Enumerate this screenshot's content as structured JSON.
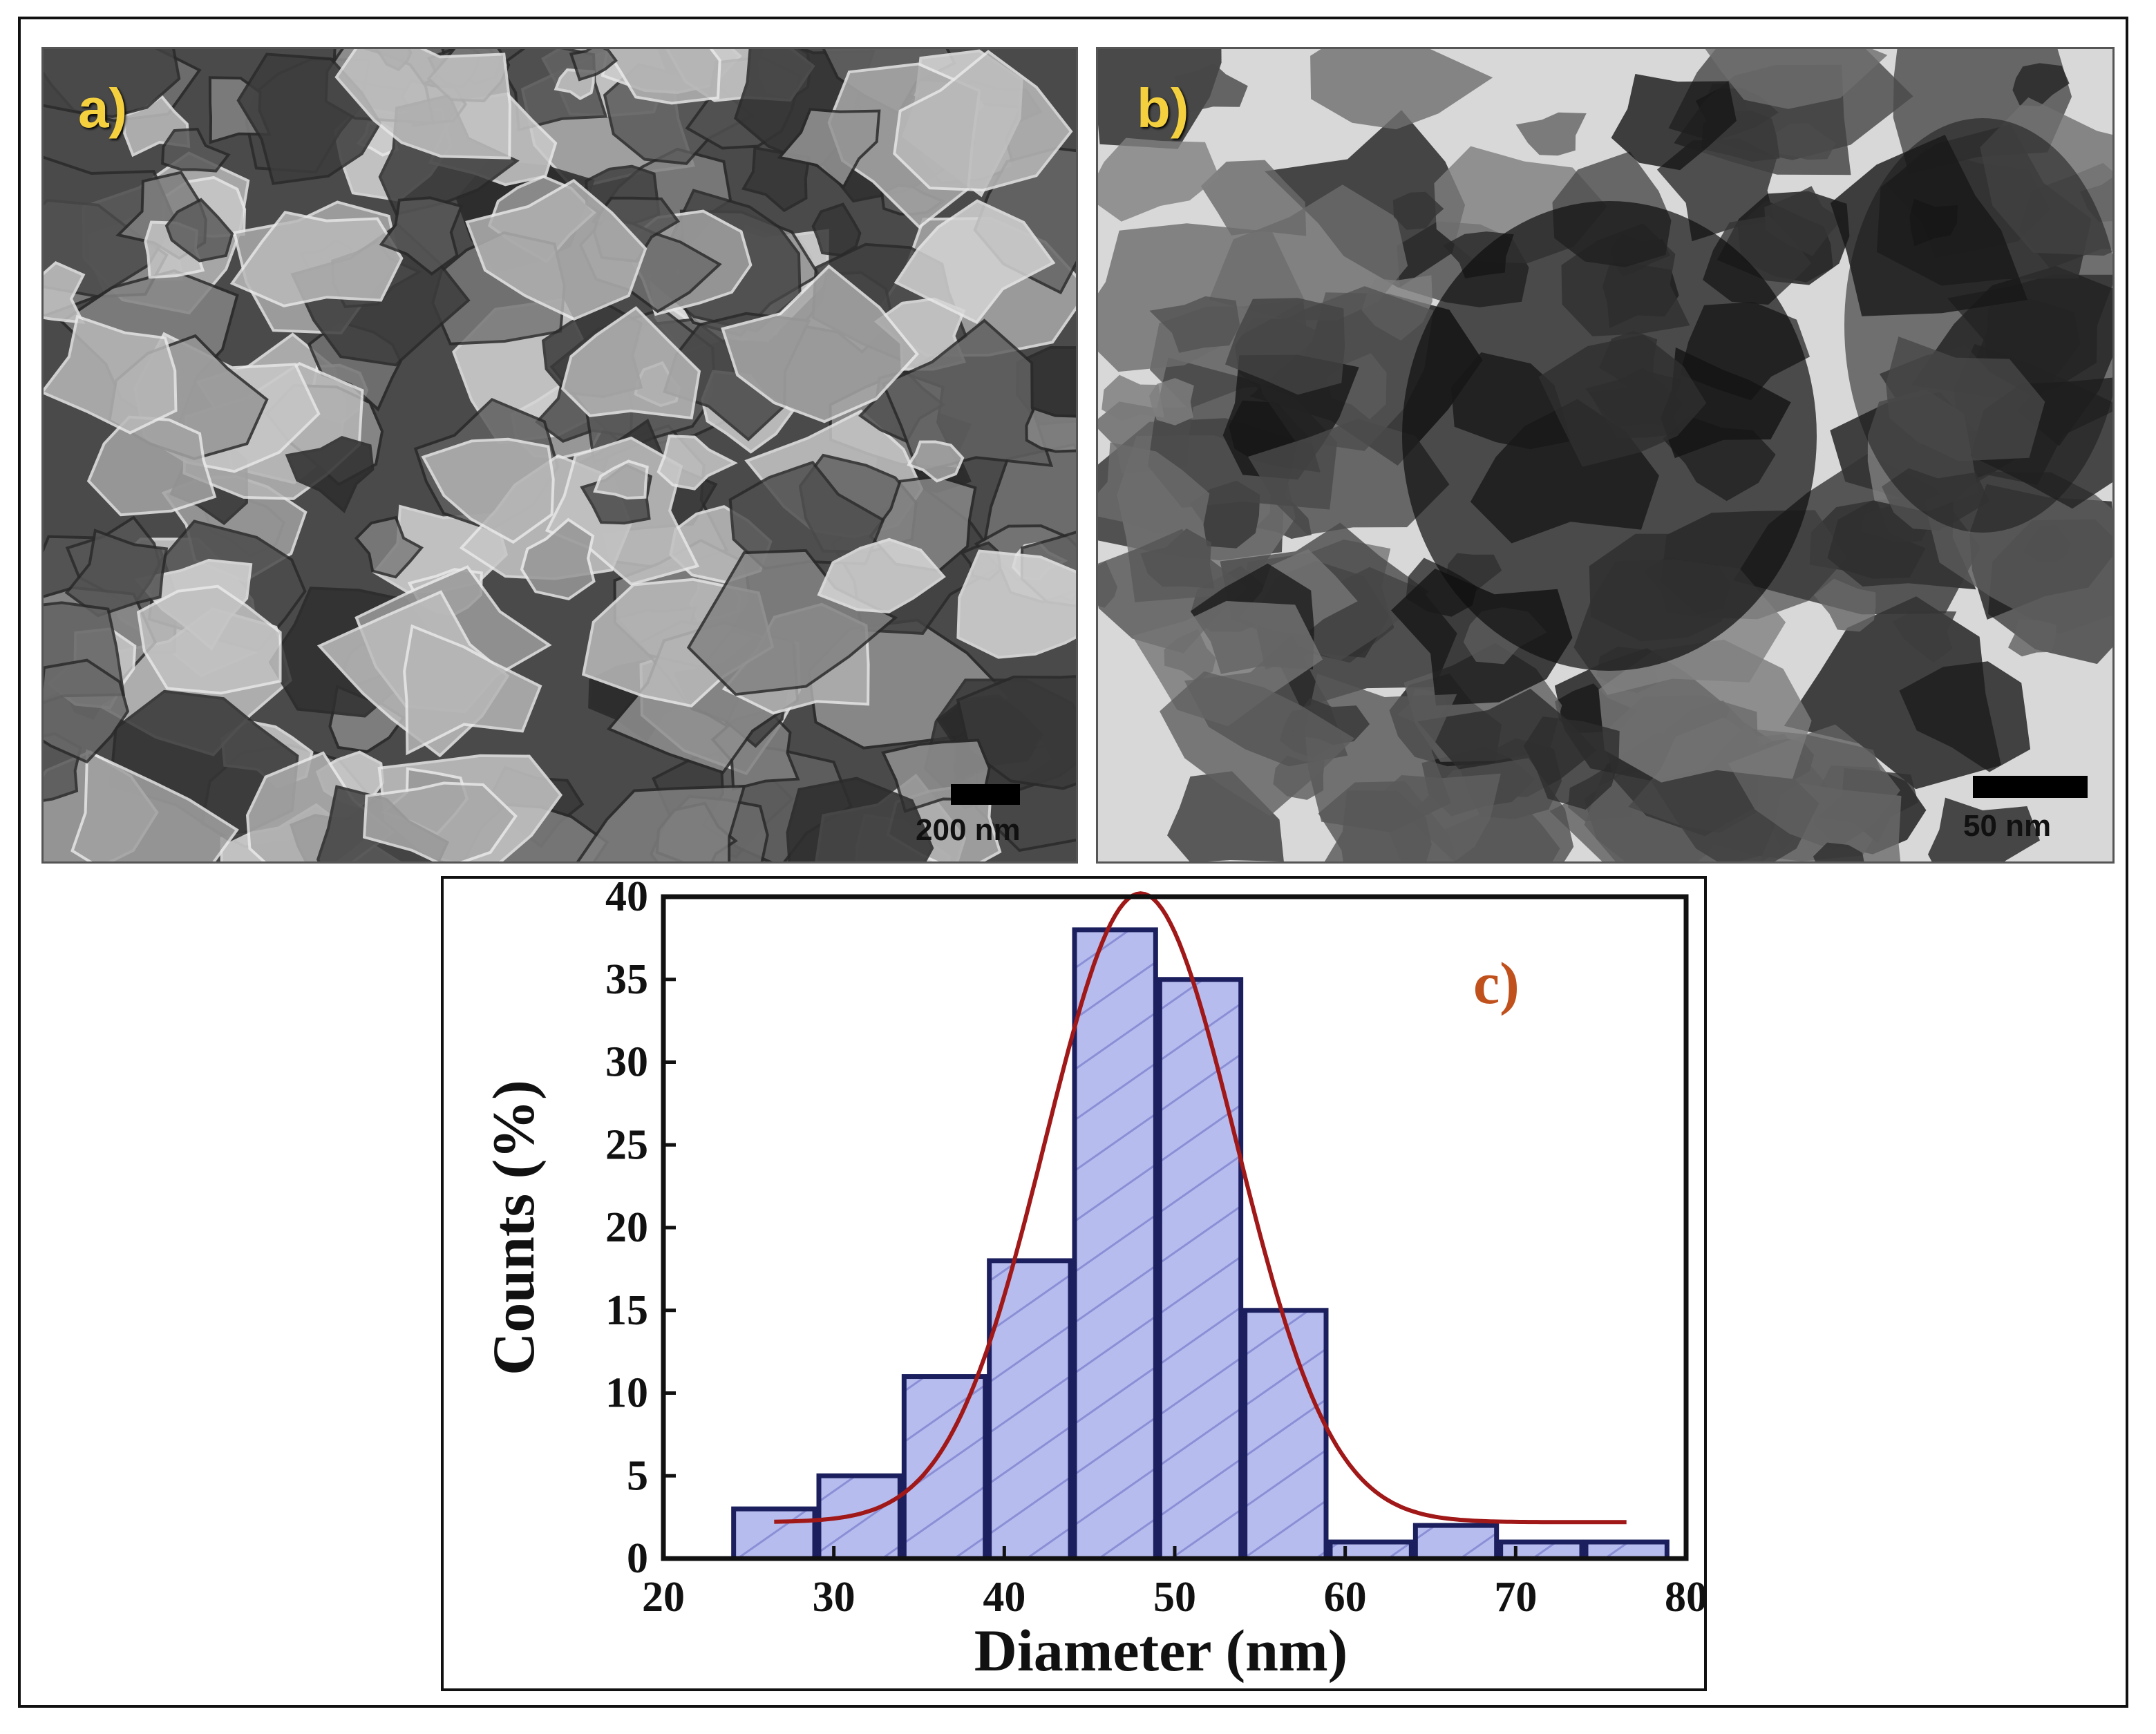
{
  "panels": {
    "a": {
      "letter": "a)",
      "scale": "200 nm"
    },
    "b": {
      "letter": "b)",
      "scale": "50 nm"
    }
  },
  "chart_data": {
    "type": "bar",
    "panel_label": "c)",
    "xlabel": "Diameter (nm)",
    "ylabel": "Counts (%)",
    "xlim": [
      20,
      80
    ],
    "ylim": [
      0,
      40
    ],
    "xticks": [
      20,
      30,
      40,
      50,
      60,
      70,
      80
    ],
    "yticks": [
      0,
      5,
      10,
      15,
      20,
      25,
      30,
      35,
      40
    ],
    "bins": [
      {
        "x0": 24,
        "x1": 29,
        "value": 3
      },
      {
        "x0": 29,
        "x1": 34,
        "value": 5
      },
      {
        "x0": 34,
        "x1": 39,
        "value": 11
      },
      {
        "x0": 39,
        "x1": 44,
        "value": 18
      },
      {
        "x0": 44,
        "x1": 49,
        "value": 38
      },
      {
        "x0": 49,
        "x1": 54,
        "value": 35
      },
      {
        "x0": 54,
        "x1": 59,
        "value": 15
      },
      {
        "x0": 59,
        "x1": 64,
        "value": 1
      },
      {
        "x0": 64,
        "x1": 69,
        "value": 2
      },
      {
        "x0": 69,
        "x1": 74,
        "value": 1
      },
      {
        "x0": 74,
        "x1": 79,
        "value": 1
      }
    ],
    "fit_curve": {
      "type": "gaussian",
      "x_range": [
        26.5,
        76.5
      ],
      "center": 48,
      "amplitude": 38,
      "sigma": 5.6,
      "baseline": 2.2
    },
    "grid": false,
    "legend": "none",
    "colors": {
      "bar_fill": "#b7bcee",
      "bar_edge": "#1c1f5e",
      "hatch": "#8a8fd6",
      "fit_line": "#a01818",
      "panel_label": "#c0501c",
      "axis": "#111111"
    }
  }
}
